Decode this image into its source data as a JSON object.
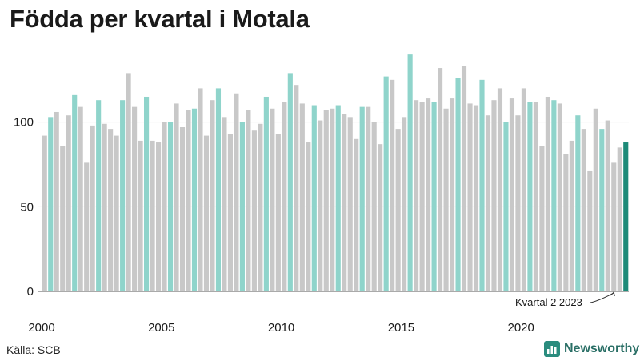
{
  "title": "Födda per kvartal i Motala",
  "source": "Källa: SCB",
  "brand": "Newsworthy",
  "colors": {
    "bar": "#c8c8c8",
    "highlight": "#8fd4cb",
    "latest": "#1d8a78",
    "grid": "#e0e0e0",
    "text": "#1a1a1a"
  },
  "chart_data": {
    "type": "bar",
    "title": "Födda per kvartal i Motala",
    "xlabel": "",
    "ylabel": "",
    "ylim": [
      0,
      150
    ],
    "yticks": [
      0,
      50,
      100
    ],
    "xticks": [
      "2000",
      "2005",
      "2010",
      "2015",
      "2020"
    ],
    "start_year": 2000,
    "annotation": "Kvartal 2 2023",
    "note": "Each group of four bars is one year (Q1–Q4); the second quarter is highlighted; the last bar (Q2 2023) is the latest value.",
    "values": [
      92,
      103,
      106,
      86,
      104,
      116,
      109,
      76,
      98,
      113,
      99,
      96,
      92,
      113,
      129,
      109,
      89,
      115,
      89,
      88,
      100,
      100,
      111,
      97,
      107,
      108,
      120,
      92,
      113,
      120,
      103,
      93,
      117,
      100,
      107,
      95,
      99,
      115,
      108,
      93,
      112,
      129,
      122,
      111,
      88,
      110,
      101,
      107,
      108,
      110,
      105,
      103,
      90,
      109,
      109,
      100,
      87,
      127,
      125,
      96,
      103,
      140,
      113,
      112,
      114,
      112,
      132,
      108,
      114,
      126,
      133,
      111,
      110,
      125,
      104,
      113,
      120,
      100,
      114,
      104,
      120,
      112,
      112,
      86,
      115,
      113,
      111,
      81,
      89,
      104,
      96,
      71,
      108,
      96,
      101,
      76,
      85,
      88
    ]
  }
}
